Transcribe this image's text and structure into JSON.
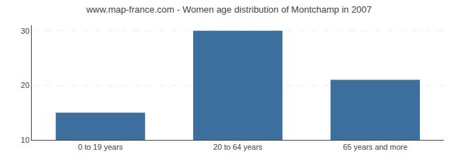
{
  "chart_data": {
    "type": "bar",
    "title": "www.map-france.com - Women age distribution of Montchamp in 2007",
    "categories": [
      "0 to 19 years",
      "20 to 64 years",
      "65 years and more"
    ],
    "values": [
      15,
      30,
      21
    ],
    "color": "#3d6f9e",
    "ylim": [
      10,
      31
    ],
    "yticks": [
      10,
      20,
      30
    ],
    "grid": true
  }
}
